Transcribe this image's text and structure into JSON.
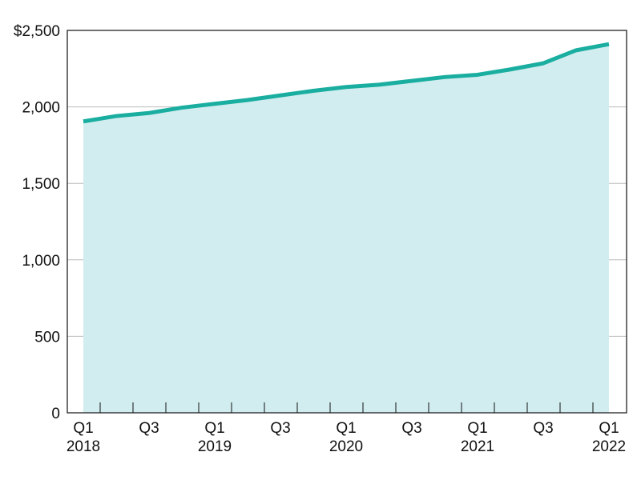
{
  "chart_data": {
    "type": "area",
    "title": "",
    "xlabel": "",
    "ylabel": "",
    "x": [
      "Q1 2018",
      "Q2 2018",
      "Q3 2018",
      "Q4 2018",
      "Q1 2019",
      "Q2 2019",
      "Q3 2019",
      "Q4 2019",
      "Q1 2020",
      "Q2 2020",
      "Q3 2020",
      "Q4 2020",
      "Q1 2021",
      "Q2 2021",
      "Q3 2021",
      "Q4 2021",
      "Q1 2022"
    ],
    "series": [
      {
        "values": [
          1905,
          1940,
          1960,
          1995,
          2020,
          2045,
          2075,
          2105,
          2130,
          2145,
          2170,
          2195,
          2210,
          2245,
          2285,
          2370,
          2410
        ]
      }
    ],
    "ylim": [
      0,
      2500
    ],
    "yticks": [
      0,
      500,
      1000,
      1500,
      2000,
      2500
    ],
    "ytick_labels": [
      "0",
      "500",
      "1,000",
      "1,500",
      "2,000",
      "$2,500"
    ],
    "xtick_labels": [
      {
        "index": 0,
        "lines": [
          "Q1",
          "2018"
        ]
      },
      {
        "index": 2,
        "lines": [
          "Q3"
        ]
      },
      {
        "index": 4,
        "lines": [
          "Q1",
          "2019"
        ]
      },
      {
        "index": 6,
        "lines": [
          "Q3"
        ]
      },
      {
        "index": 8,
        "lines": [
          "Q1",
          "2020"
        ]
      },
      {
        "index": 10,
        "lines": [
          "Q3"
        ]
      },
      {
        "index": 12,
        "lines": [
          "Q1",
          "2021"
        ]
      },
      {
        "index": 14,
        "lines": [
          "Q3"
        ]
      },
      {
        "index": 16,
        "lines": [
          "Q1",
          "2022"
        ]
      }
    ],
    "grid": true,
    "colors": {
      "line": "#1aaea0",
      "fill": "#d1edf0",
      "grid": "#bbbbbb",
      "axis": "#111111"
    }
  }
}
